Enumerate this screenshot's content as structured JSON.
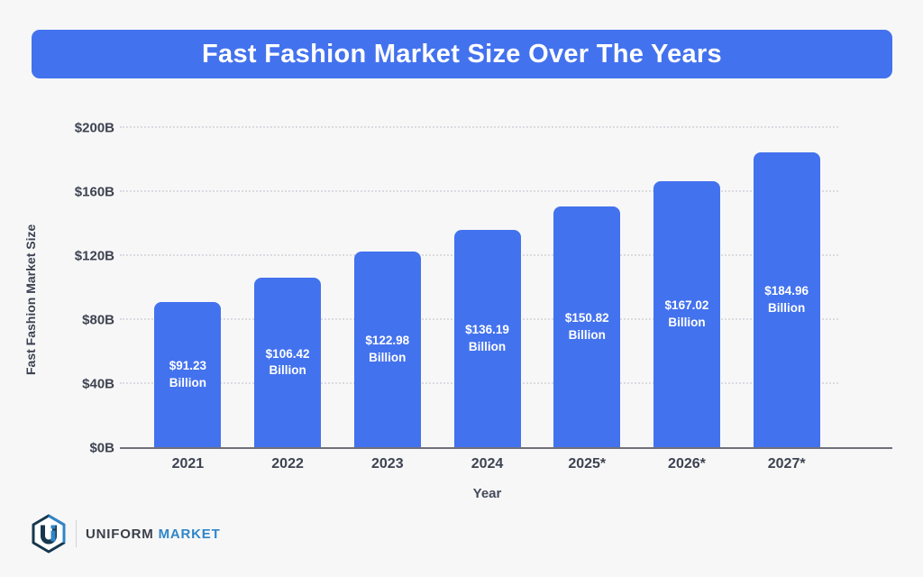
{
  "banner": {
    "title": "Fast Fashion Market Size Over The Years",
    "background": "#4372EE"
  },
  "chart_data": {
    "type": "bar",
    "title": "Fast Fashion Market Size Over The Years",
    "categories": [
      "2021",
      "2022",
      "2023",
      "2024",
      "2025*",
      "2026*",
      "2027*"
    ],
    "values": [
      91.23,
      106.42,
      122.98,
      136.19,
      150.82,
      167.02,
      184.96
    ],
    "bar_labels": [
      [
        "$91.23",
        "Billion"
      ],
      [
        "$106.42",
        "Billion"
      ],
      [
        "$122.98",
        "Billion"
      ],
      [
        "$136.19",
        "Billion"
      ],
      [
        "$150.82",
        "Billion"
      ],
      [
        "$167.02",
        "Billion"
      ],
      [
        "$184.96",
        "Billion"
      ]
    ],
    "xlabel": "Year",
    "ylabel": "Fast Fashion Market Size",
    "ylim": [
      0,
      200
    ],
    "yticks": [
      {
        "value": 0,
        "label": "$0B"
      },
      {
        "value": 40,
        "label": "$40B"
      },
      {
        "value": 80,
        "label": "$80B"
      },
      {
        "value": 120,
        "label": "$120B"
      },
      {
        "value": 160,
        "label": "$160B"
      },
      {
        "value": 200,
        "label": "$200B"
      }
    ],
    "grid": "horizontal-dotted",
    "legend": "none",
    "bar_color": "#4372EE",
    "value_label_color": "#FFFFFF",
    "axis_text_color": "#3D4350"
  },
  "footer": {
    "brand_first": "UNIFORM",
    "brand_second": "MARKET",
    "brand_first_color": "#3A4049",
    "brand_second_color": "#2F86C8"
  }
}
